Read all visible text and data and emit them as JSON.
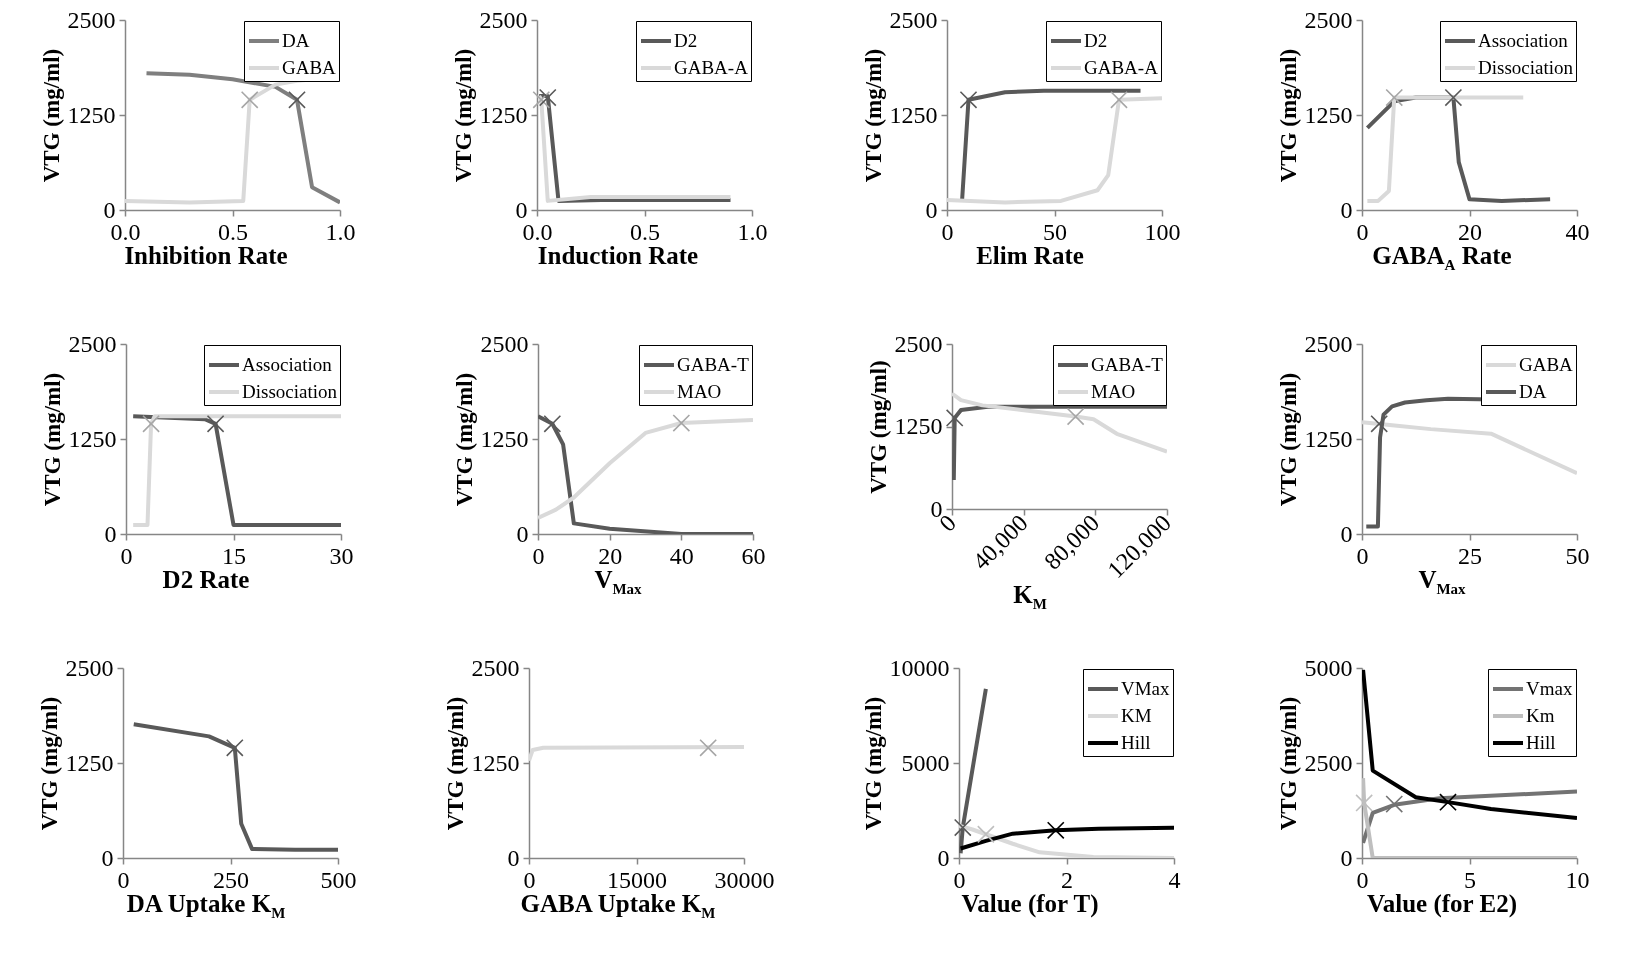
{
  "chart_data": [
    {
      "type": "line",
      "xlabel": "Inhibition Rate",
      "ylabel": "VTG (mg/ml)",
      "xlim": [
        0,
        1
      ],
      "xticks": [
        {
          "value": 0,
          "label": "0.0"
        },
        {
          "value": 0.5,
          "label": "0.5"
        },
        {
          "value": 1,
          "label": "1.0"
        }
      ],
      "ylim": [
        0,
        2500
      ],
      "yticks": [
        0,
        1250,
        2500
      ],
      "legend": "top right",
      "series": [
        {
          "name": "DA",
          "color": "#7f7f7f",
          "x": [
            0.1,
            0.3,
            0.5,
            0.7,
            0.8,
            0.87,
            1.0
          ],
          "values": [
            1800,
            1780,
            1720,
            1620,
            1450,
            300,
            100
          ]
        },
        {
          "name": "GABA",
          "color": "#d9d9d9",
          "x": [
            0,
            0.3,
            0.55,
            0.58,
            0.7,
            0.8,
            1.0
          ],
          "values": [
            120,
            100,
            120,
            1450,
            1650,
            1700,
            1750
          ]
        },
        {
          "type": "scatter",
          "marker": "cross",
          "color": "#a6a6a6",
          "x": [
            0.58
          ],
          "values": [
            1450
          ]
        },
        {
          "type": "scatter",
          "marker": "cross",
          "color": "#595959",
          "x": [
            0.8
          ],
          "values": [
            1450
          ]
        }
      ]
    },
    {
      "type": "line",
      "xlabel": "Induction Rate",
      "ylabel": "VTG (mg/ml)",
      "xlim": [
        0,
        1
      ],
      "xticks": [
        {
          "value": 0,
          "label": "0.0"
        },
        {
          "value": 0.5,
          "label": "0.5"
        },
        {
          "value": 1,
          "label": "1.0"
        }
      ],
      "ylim": [
        0,
        2500
      ],
      "yticks": [
        0,
        1250,
        2500
      ],
      "legend": "top right",
      "series": [
        {
          "name": "D2",
          "color": "#595959",
          "x": [
            0.01,
            0.05,
            0.1,
            0.3,
            0.5,
            0.9
          ],
          "values": [
            1500,
            1500,
            120,
            130,
            130,
            130
          ]
        },
        {
          "name": "GABA-A",
          "color": "#d9d9d9",
          "x": [
            0.01,
            0.02,
            0.05,
            0.25,
            0.5,
            0.9
          ],
          "values": [
            1500,
            1450,
            120,
            170,
            170,
            170
          ]
        },
        {
          "type": "scatter",
          "marker": "cross",
          "color": "#a6a6a6",
          "x": [
            0.02
          ],
          "values": [
            1450
          ]
        },
        {
          "type": "scatter",
          "marker": "cross",
          "color": "#595959",
          "x": [
            0.05
          ],
          "values": [
            1480
          ]
        }
      ]
    },
    {
      "type": "line",
      "xlabel": "Elim Rate",
      "ylabel": "VTG (mg/ml)",
      "xlim": [
        0,
        100
      ],
      "xticks": [
        0,
        50,
        100
      ],
      "ylim": [
        0,
        2500
      ],
      "yticks": [
        0,
        1250,
        2500
      ],
      "legend": "top right",
      "series": [
        {
          "name": "D2",
          "color": "#595959",
          "x": [
            7,
            10,
            27,
            45,
            90
          ],
          "values": [
            120,
            1450,
            1550,
            1570,
            1570
          ]
        },
        {
          "name": "GABA-A",
          "color": "#d9d9d9",
          "x": [
            0,
            27,
            53,
            70,
            75,
            80,
            100
          ],
          "values": [
            130,
            100,
            120,
            260,
            460,
            1450,
            1470
          ]
        },
        {
          "type": "scatter",
          "marker": "cross",
          "color": "#595959",
          "x": [
            10
          ],
          "values": [
            1450
          ]
        },
        {
          "type": "scatter",
          "marker": "cross",
          "color": "#a6a6a6",
          "x": [
            80
          ],
          "values": [
            1450
          ]
        }
      ]
    },
    {
      "type": "line",
      "xlabel": "GABA$_{A}$ Rate",
      "ylabel": "VTG (mg/ml)",
      "xlim": [
        0,
        40
      ],
      "xticks": [
        0,
        20,
        40
      ],
      "ylim": [
        0,
        2500
      ],
      "yticks": [
        0,
        1250,
        2500
      ],
      "legend": "top right",
      "series": [
        {
          "name": "Association",
          "color": "#595959",
          "x": [
            1,
            6,
            10,
            17,
            18,
            20,
            26,
            35
          ],
          "values": [
            1080,
            1430,
            1480,
            1480,
            630,
            140,
            120,
            140
          ]
        },
        {
          "name": "Dissociation",
          "color": "#d9d9d9",
          "x": [
            1,
            3,
            5,
            6,
            30
          ],
          "values": [
            120,
            120,
            250,
            1480,
            1480
          ]
        },
        {
          "type": "scatter",
          "marker": "cross",
          "color": "#a6a6a6",
          "x": [
            6
          ],
          "values": [
            1480
          ]
        },
        {
          "type": "scatter",
          "marker": "cross",
          "color": "#595959",
          "x": [
            17
          ],
          "values": [
            1480
          ]
        }
      ]
    },
    {
      "type": "line",
      "xlabel": "D2 Rate",
      "ylabel": "VTG (mg/ml)",
      "xlim": [
        0,
        30
      ],
      "xticks": [
        0,
        15,
        30
      ],
      "ylim": [
        0,
        2500
      ],
      "yticks": [
        0,
        1250,
        2500
      ],
      "legend": "top right",
      "series": [
        {
          "name": "Association",
          "color": "#595959",
          "x": [
            1,
            11,
            12.5,
            15,
            30
          ],
          "values": [
            1550,
            1510,
            1450,
            120,
            120
          ]
        },
        {
          "name": "Dissociation",
          "color": "#d9d9d9",
          "x": [
            1,
            3,
            3.5,
            4,
            30
          ],
          "values": [
            120,
            120,
            1450,
            1550,
            1550
          ]
        },
        {
          "type": "scatter",
          "marker": "cross",
          "color": "#a6a6a6",
          "x": [
            3.5
          ],
          "values": [
            1450
          ]
        },
        {
          "type": "scatter",
          "marker": "cross",
          "color": "#595959",
          "x": [
            12.5
          ],
          "values": [
            1450
          ]
        }
      ]
    },
    {
      "type": "line",
      "xlabel": "V$_{Max}$",
      "ylabel": "VTG (mg/ml)",
      "xlim": [
        0,
        60
      ],
      "xticks": [
        0,
        20,
        40,
        60
      ],
      "ylim": [
        0,
        2500
      ],
      "yticks": [
        0,
        1250,
        2500
      ],
      "legend": "top right",
      "series": [
        {
          "name": "GABA-T",
          "color": "#595959",
          "x": [
            0,
            4,
            7,
            10,
            20,
            40,
            60
          ],
          "values": [
            1550,
            1450,
            1180,
            140,
            70,
            0,
            0
          ]
        },
        {
          "name": "MAO",
          "color": "#d9d9d9",
          "x": [
            0,
            5,
            10,
            20,
            30,
            40,
            60
          ],
          "values": [
            210,
            320,
            480,
            930,
            1330,
            1460,
            1500
          ]
        },
        {
          "type": "scatter",
          "marker": "cross",
          "color": "#595959",
          "x": [
            4
          ],
          "values": [
            1450
          ]
        },
        {
          "type": "scatter",
          "marker": "cross",
          "color": "#a6a6a6",
          "x": [
            40
          ],
          "values": [
            1460
          ]
        }
      ]
    },
    {
      "type": "line",
      "xlabel": "K$_{M}$",
      "ylabel": "VTG (mg/ml)",
      "xlim": [
        0,
        120000
      ],
      "xticks": [
        0,
        {
          "value": 40000,
          "label": "40,000"
        },
        {
          "value": 80000,
          "label": "80,000"
        },
        {
          "value": 120000,
          "label": "120,000"
        }
      ],
      "ylim": [
        0,
        2500
      ],
      "yticks": [
        0,
        1250,
        2500
      ],
      "legend": "top right",
      "series": [
        {
          "name": "GABA-T",
          "color": "#595959",
          "x": [
            1000,
            1500,
            5000,
            20000,
            120000
          ],
          "values": [
            440,
            1380,
            1500,
            1550,
            1550
          ]
        },
        {
          "name": "MAO",
          "color": "#d9d9d9",
          "x": [
            0,
            5000,
            17000,
            39000,
            69000,
            79000,
            92000,
            120000
          ],
          "values": [
            1750,
            1650,
            1570,
            1500,
            1400,
            1360,
            1140,
            870
          ]
        },
        {
          "type": "scatter",
          "marker": "cross",
          "color": "#595959",
          "x": [
            1500
          ],
          "values": [
            1380
          ]
        },
        {
          "type": "scatter",
          "marker": "cross",
          "color": "#a6a6a6",
          "x": [
            69000
          ],
          "values": [
            1400
          ]
        }
      ]
    },
    {
      "type": "line",
      "xlabel": "V$_{Max}$",
      "ylabel": "VTG (mg/ml)",
      "xlim": [
        0,
        50
      ],
      "xticks": [
        0,
        25,
        50
      ],
      "ylim": [
        0,
        2500
      ],
      "yticks": [
        0,
        1250,
        2500
      ],
      "legend": "top right",
      "series": [
        {
          "name": "GABA",
          "color": "#d9d9d9",
          "x": [
            0,
            7,
            16,
            30,
            50
          ],
          "values": [
            1470,
            1430,
            1380,
            1320,
            800
          ]
        },
        {
          "name": "DA",
          "color": "#595959",
          "x": [
            1,
            3.7,
            4.2,
            5,
            7,
            10,
            15,
            20,
            50
          ],
          "values": [
            100,
            100,
            1270,
            1570,
            1680,
            1730,
            1760,
            1780,
            1750
          ]
        },
        {
          "type": "scatter",
          "marker": "cross",
          "color": "#595959",
          "x": [
            4
          ],
          "values": [
            1450
          ]
        }
      ]
    },
    {
      "type": "line",
      "xlabel": "DA Uptake K$_{M}$",
      "ylabel": "VTG (mg/ml)",
      "xlim": [
        0,
        500
      ],
      "xticks": [
        0,
        250,
        500
      ],
      "ylim": [
        0,
        2500
      ],
      "yticks": [
        0,
        1250,
        2500
      ],
      "series": [
        {
          "color": "#595959",
          "x": [
            25,
            200,
            260,
            275,
            300,
            400,
            500
          ],
          "values": [
            1760,
            1600,
            1450,
            450,
            120,
            110,
            110
          ]
        },
        {
          "type": "scatter",
          "marker": "cross",
          "color": "#595959",
          "x": [
            260
          ],
          "values": [
            1450
          ]
        }
      ]
    },
    {
      "type": "line",
      "xlabel": "GABA Uptake K$_{M}$",
      "ylabel": "VTG (mg/ml)",
      "xlim": [
        0,
        30000
      ],
      "xticks": [
        0,
        15000,
        30000
      ],
      "ylim": [
        0,
        2500
      ],
      "yticks": [
        0,
        1250,
        2500
      ],
      "series": [
        {
          "color": "#d9d9d9",
          "x": [
            0,
            500,
            2000,
            30000
          ],
          "values": [
            1280,
            1420,
            1450,
            1460
          ]
        },
        {
          "type": "scatter",
          "marker": "cross",
          "color": "#a6a6a6",
          "x": [
            25000
          ],
          "values": [
            1450
          ]
        }
      ]
    },
    {
      "type": "line",
      "xlabel": "Value (for T)",
      "ylabel": "VTG (mg/ml)",
      "xlim": [
        0,
        4
      ],
      "xticks": [
        0,
        2,
        4
      ],
      "ylim": [
        0,
        10000
      ],
      "yticks": [
        0,
        5000,
        10000
      ],
      "legend": "top right",
      "series": [
        {
          "name": "VMax",
          "color": "#595959",
          "x": [
            0.03,
            0.07,
            0.5
          ],
          "values": [
            250,
            1600,
            8900
          ]
        },
        {
          "name": "KM",
          "color": "#d9d9d9",
          "x": [
            0,
            0.25,
            0.5,
            1,
            1.5,
            2.5,
            4
          ],
          "values": [
            1700,
            1500,
            1250,
            750,
            300,
            50,
            0
          ]
        },
        {
          "name": "Hill",
          "color": "#000000",
          "x": [
            0.03,
            0.5,
            1,
            1.8,
            2.6,
            4
          ],
          "values": [
            500,
            900,
            1280,
            1460,
            1540,
            1590
          ]
        },
        {
          "type": "scatter",
          "marker": "cross",
          "color": "#595959",
          "x": [
            0.07
          ],
          "values": [
            1600
          ]
        },
        {
          "type": "scatter",
          "marker": "cross",
          "color": "#bfbfbf",
          "x": [
            0.5
          ],
          "values": [
            1250
          ]
        },
        {
          "type": "scatter",
          "marker": "cross",
          "color": "#000000",
          "x": [
            1.8
          ],
          "values": [
            1460
          ]
        }
      ]
    },
    {
      "type": "line",
      "xlabel": "Value (for E2)",
      "ylabel": "VTG (mg/ml)",
      "xlim": [
        0,
        10
      ],
      "xticks": [
        0,
        5,
        10
      ],
      "ylim": [
        0,
        5000
      ],
      "yticks": [
        0,
        2500,
        5000
      ],
      "legend": "top right",
      "series": [
        {
          "name": "Vmax",
          "color": "#737373",
          "x": [
            0.05,
            0.5,
            1.5,
            3.6,
            10
          ],
          "values": [
            400,
            1190,
            1400,
            1570,
            1750
          ]
        },
        {
          "name": "Km",
          "color": "#bfbfbf",
          "x": [
            0.05,
            0.1,
            0.5,
            10
          ],
          "values": [
            2100,
            1450,
            0,
            0
          ]
        },
        {
          "name": "Hill",
          "color": "#000000",
          "x": [
            0.05,
            0.5,
            2.5,
            4,
            6,
            10
          ],
          "values": [
            4950,
            2300,
            1600,
            1470,
            1290,
            1050
          ]
        },
        {
          "type": "scatter",
          "marker": "cross",
          "color": "#bfbfbf",
          "x": [
            0.1
          ],
          "values": [
            1450
          ]
        },
        {
          "type": "scatter",
          "marker": "cross",
          "color": "#737373",
          "x": [
            1.5
          ],
          "values": [
            1420
          ]
        },
        {
          "type": "scatter",
          "marker": "cross",
          "color": "#000000",
          "x": [
            4
          ],
          "values": [
            1470
          ]
        }
      ]
    }
  ]
}
